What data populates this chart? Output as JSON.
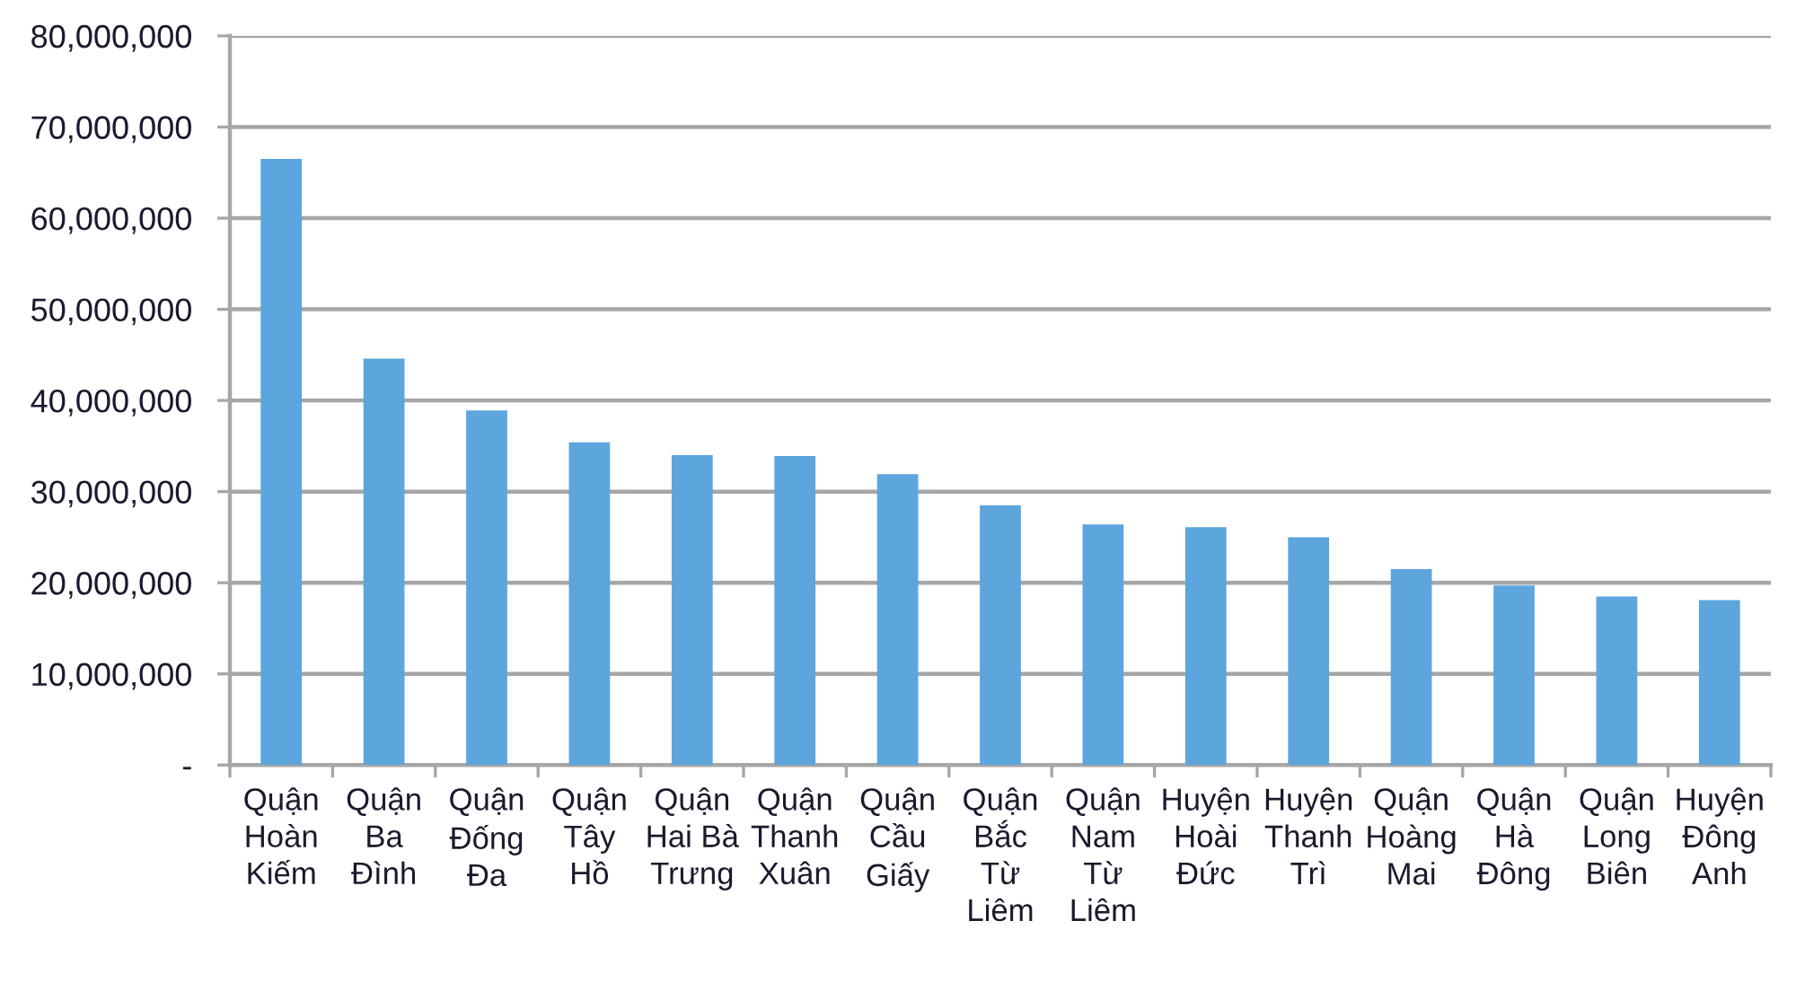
{
  "chart_data": {
    "type": "bar",
    "categories": [
      "Quận Hoàn Kiếm",
      "Quận Ba Đình",
      "Quận Đống Đa",
      "Quận Tây Hồ",
      "Quận Hai Bà Trưng",
      "Quận Thanh Xuân",
      "Quận Cầu Giấy",
      "Quận Bắc Từ Liêm",
      "Quận Nam Từ Liêm",
      "Huyện Hoài Đức",
      "Huyện Thanh Trì",
      "Quận Hoàng Mai",
      "Quận Hà Đông",
      "Quận Long Biên",
      "Huyện Đông Anh"
    ],
    "values": [
      66500000,
      44600000,
      38900000,
      35400000,
      34000000,
      33900000,
      31900000,
      28500000,
      26400000,
      26100000,
      25000000,
      21500000,
      19700000,
      18500000,
      18100000
    ],
    "color": "#5da5dd",
    "ylim": [
      0,
      80000000
    ],
    "yticks": [
      {
        "value": 0,
        "label": "-"
      },
      {
        "value": 10000000,
        "label": "10,000,000"
      },
      {
        "value": 20000000,
        "label": "20,000,000"
      },
      {
        "value": 30000000,
        "label": "30,000,000"
      },
      {
        "value": 40000000,
        "label": "40,000,000"
      },
      {
        "value": 50000000,
        "label": "50,000,000"
      },
      {
        "value": 60000000,
        "label": "60,000,000"
      },
      {
        "value": 70000000,
        "label": "70,000,000"
      },
      {
        "value": 80000000,
        "label": "80,000,000"
      }
    ],
    "grid": "y"
  }
}
